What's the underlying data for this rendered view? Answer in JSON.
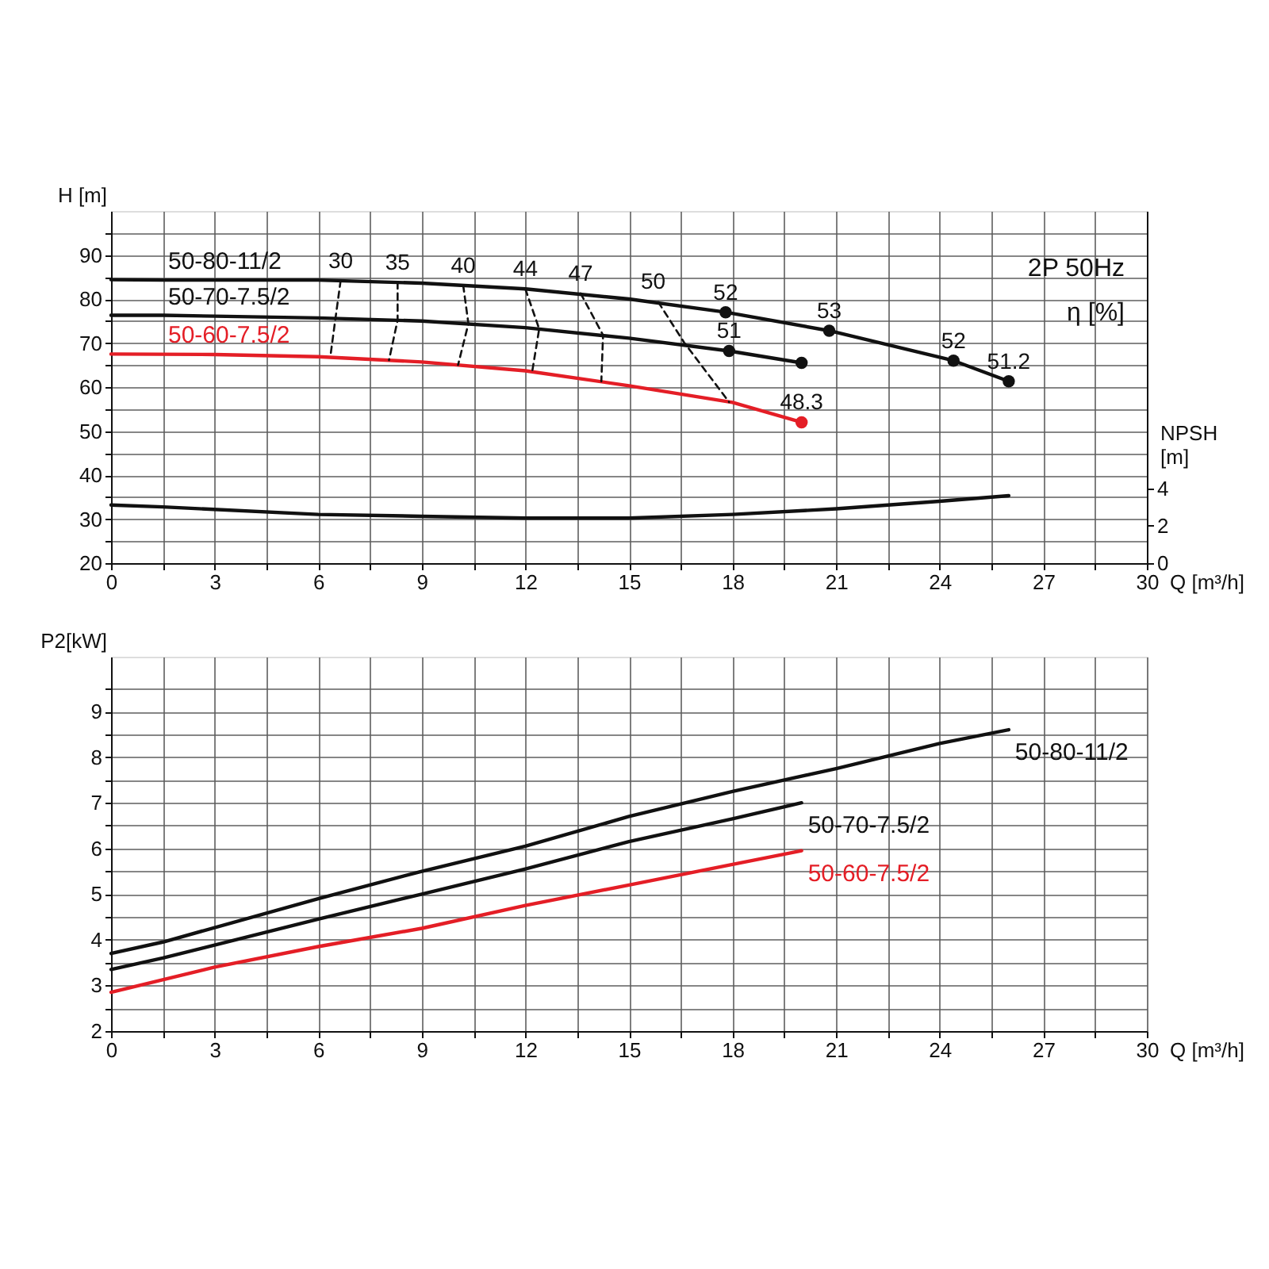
{
  "chart_data": [
    {
      "type": "line",
      "xlabel": "Q [m³/h]",
      "ylabel": "H [m]",
      "y2label": "NPSH [m]",
      "xlim": [
        0,
        30
      ],
      "xticks": [
        0,
        {
          "value": 1.5,
          "label": null
        },
        3,
        {
          "value": 4.5,
          "label": null
        },
        6,
        {
          "value": 7.5,
          "label": null
        },
        9,
        {
          "value": 10.5,
          "label": null
        },
        12,
        {
          "value": 13.5,
          "label": null
        },
        15,
        {
          "value": 16.5,
          "label": null
        },
        18,
        {
          "value": 19.5,
          "label": null
        },
        21,
        {
          "value": 22.5,
          "label": null
        },
        24,
        {
          "value": 25.5,
          "label": null
        },
        27,
        {
          "value": 28.5,
          "label": null
        },
        30
      ],
      "ylim": [
        20,
        100
      ],
      "yticks": [
        20,
        {
          "value": 25,
          "label": null
        },
        30,
        {
          "value": 35,
          "label": null
        },
        40,
        {
          "value": 45,
          "label": null
        },
        50,
        {
          "value": 55,
          "label": null
        },
        60,
        {
          "value": 65,
          "label": null
        },
        70,
        {
          "value": 75,
          "label": null
        },
        80,
        {
          "value": 85,
          "label": null
        },
        90,
        {
          "value": 95,
          "label": null
        }
      ],
      "y2lim": [
        0,
        18.8
      ],
      "y2ticks": [
        0,
        2,
        4
      ],
      "grid": true,
      "series": [
        {
          "name": "50-80-11/2",
          "color": "#111111",
          "x": [
            0,
            1.5,
            3,
            6,
            9,
            12,
            15,
            17.8,
            20.8,
            24.4,
            26
          ],
          "values": [
            84.4,
            84.3,
            84.3,
            84.3,
            83.6,
            82.3,
            80.0,
            77.0,
            72.8,
            66.0,
            61.3
          ]
        },
        {
          "name": "50-70-7.5/2",
          "color": "#111111",
          "x": [
            0,
            1.5,
            3,
            6,
            9,
            12,
            15,
            17.9,
            20
          ],
          "values": [
            76.3,
            76.3,
            76.1,
            75.7,
            75.0,
            73.5,
            71.1,
            68.2,
            65.5
          ]
        },
        {
          "name": "50-60-7.5/2",
          "color": "#e41e26",
          "x": [
            0,
            3,
            6,
            9,
            12,
            15,
            18,
            20
          ],
          "values": [
            67.5,
            67.4,
            66.9,
            65.7,
            63.7,
            60.3,
            56.5,
            52.0
          ]
        },
        {
          "axis": "y2",
          "color": "#111111",
          "x": [
            0,
            1.5,
            6,
            9,
            12,
            15,
            18,
            21,
            24,
            26
          ],
          "values": [
            3.1,
            3.0,
            2.6,
            2.5,
            2.4,
            2.4,
            2.6,
            2.9,
            3.3,
            3.6
          ]
        },
        {
          "line_style": "dashed",
          "color": "#111111",
          "x": [
            6.65,
            6.5,
            6.35
          ],
          "values": [
            84.2,
            75.6,
            66.8
          ]
        },
        {
          "line_style": "dashed",
          "color": "#111111",
          "x": [
            8.3,
            8.3,
            8.05
          ],
          "values": [
            83.8,
            75.2,
            66.1
          ]
        },
        {
          "line_style": "dashed",
          "color": "#111111",
          "x": [
            10.2,
            10.35,
            10.05
          ],
          "values": [
            83.1,
            74.4,
            65.0
          ]
        },
        {
          "line_style": "dashed",
          "color": "#111111",
          "x": [
            12.0,
            12.4,
            12.2
          ],
          "values": [
            82.3,
            73.2,
            63.6
          ]
        },
        {
          "line_style": "dashed",
          "color": "#111111",
          "x": [
            13.6,
            14.25,
            14.2
          ],
          "values": [
            81.3,
            71.8,
            61.3
          ]
        },
        {
          "line_style": "dashed",
          "color": "#111111",
          "x": [
            15.85,
            16.6,
            17.9
          ],
          "values": [
            79.3,
            70.1,
            56.6
          ]
        },
        {
          "type": "scatter",
          "marker": "circle",
          "color": "#111111",
          "x": [
            17.8,
            20.8,
            24.4,
            26,
            17.9,
            20
          ],
          "values": [
            77.0,
            72.8,
            66.0,
            61.3,
            68.2,
            65.5
          ]
        },
        {
          "type": "scatter",
          "marker": "circle",
          "color": "#e41e26",
          "x": [
            20
          ],
          "values": [
            52.0
          ]
        }
      ],
      "annotations": [
        {
          "text": "30",
          "x": 6.65,
          "y": 84.2
        },
        {
          "text": "35",
          "x": 8.3,
          "y": 83.8
        },
        {
          "text": "40",
          "x": 10.2,
          "y": 83.1
        },
        {
          "text": "44",
          "x": 12.0,
          "y": 82.3
        },
        {
          "text": "47",
          "x": 13.6,
          "y": 81.3
        },
        {
          "text": "50",
          "x": 15.7,
          "y": 79.5
        },
        {
          "text": "52",
          "x": 17.8,
          "y": 77.0
        },
        {
          "text": "53",
          "x": 20.8,
          "y": 72.8
        },
        {
          "text": "52",
          "x": 24.4,
          "y": 66.0
        },
        {
          "text": "51.2",
          "x": 26,
          "y": 61.3
        },
        {
          "text": "51",
          "x": 17.9,
          "y": 68.2
        },
        {
          "text": "48.3",
          "x": 20,
          "y": 52.0
        },
        "2P 50Hz",
        "η [%]"
      ]
    },
    {
      "type": "line",
      "xlabel": "Q [m³/h]",
      "ylabel": "P2[kW]",
      "xlim": [
        0,
        30
      ],
      "xticks": [
        0,
        {
          "value": 1.5,
          "label": null
        },
        3,
        {
          "value": 4.5,
          "label": null
        },
        6,
        {
          "value": 7.5,
          "label": null
        },
        9,
        {
          "value": 10.5,
          "label": null
        },
        12,
        {
          "value": 13.5,
          "label": null
        },
        15,
        {
          "value": 16.5,
          "label": null
        },
        18,
        {
          "value": 19.5,
          "label": null
        },
        21,
        {
          "value": 22.5,
          "label": null
        },
        24,
        {
          "value": 25.5,
          "label": null
        },
        27,
        {
          "value": 28.5,
          "label": null
        },
        30
      ],
      "ylim": [
        2,
        10.2
      ],
      "yticks": [
        2,
        {
          "value": 2.5,
          "label": null
        },
        3,
        {
          "value": 3.5,
          "label": null
        },
        4,
        {
          "value": 4.5,
          "label": null
        },
        5,
        {
          "value": 5.5,
          "label": null
        },
        6,
        {
          "value": 6.5,
          "label": null
        },
        7,
        {
          "value": 7.5,
          "label": null
        },
        8,
        {
          "value": 8.5,
          "label": null
        },
        9,
        {
          "value": 9.5,
          "label": null
        }
      ],
      "grid": true,
      "series": [
        {
          "name": "50-80-11/2",
          "color": "#111111",
          "x": [
            0,
            1.5,
            6,
            9,
            12,
            15,
            18,
            21,
            24,
            26
          ],
          "values": [
            3.7,
            3.95,
            4.9,
            5.5,
            6.05,
            6.7,
            7.25,
            7.75,
            8.3,
            8.6
          ]
        },
        {
          "name": "50-70-7.5/2",
          "color": "#111111",
          "x": [
            0,
            1.5,
            6,
            9,
            12,
            15,
            18,
            20
          ],
          "values": [
            3.35,
            3.6,
            4.45,
            5.0,
            5.55,
            6.15,
            6.65,
            7.0
          ]
        },
        {
          "name": "50-60-7.5/2",
          "color": "#e41e26",
          "x": [
            0,
            3,
            6,
            9,
            12,
            15,
            18,
            20
          ],
          "values": [
            2.85,
            3.4,
            3.85,
            4.25,
            4.75,
            5.2,
            5.65,
            5.95
          ]
        }
      ]
    }
  ]
}
